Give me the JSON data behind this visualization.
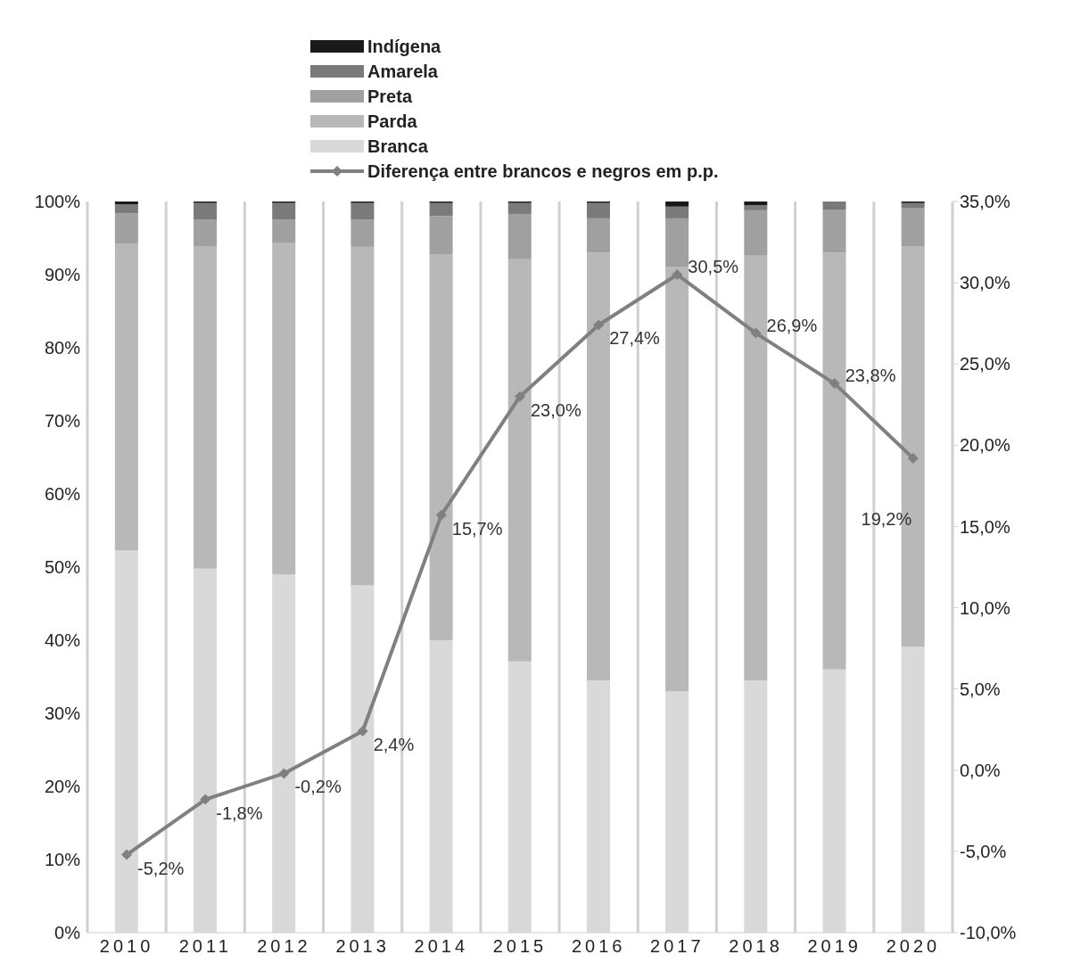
{
  "chart_data": {
    "type": "bar",
    "stacked": true,
    "categories": [
      "2010",
      "2011",
      "2012",
      "2013",
      "2014",
      "2015",
      "2016",
      "2017",
      "2018",
      "2019",
      "2020"
    ],
    "series": [
      {
        "name": "Branca",
        "color": "#d9d9d9",
        "values": [
          52.3,
          49.8,
          49.0,
          47.5,
          40.0,
          37.1,
          34.5,
          33.0,
          34.5,
          36.0,
          39.1
        ]
      },
      {
        "name": "Parda",
        "color": "#b8b8b8",
        "values": [
          41.9,
          44.1,
          45.3,
          46.3,
          52.8,
          55.0,
          58.5,
          58.1,
          58.1,
          57.0,
          54.8
        ]
      },
      {
        "name": "Preta",
        "color": "#a0a0a0",
        "values": [
          4.2,
          3.6,
          3.2,
          3.7,
          5.2,
          6.2,
          4.7,
          6.6,
          6.2,
          5.9,
          5.2
        ]
      },
      {
        "name": "Amarela",
        "color": "#7a7a7a",
        "values": [
          1.2,
          2.3,
          2.3,
          2.3,
          1.8,
          1.5,
          2.1,
          1.6,
          0.7,
          1.1,
          0.7
        ]
      },
      {
        "name": "Indígena",
        "color": "#1a1a1a",
        "values": [
          0.4,
          0.2,
          0.2,
          0.2,
          0.2,
          0.2,
          0.2,
          0.7,
          0.5,
          0.0,
          0.2
        ]
      },
      {
        "name": "Diferença entre brancos e negros em p.p.",
        "type": "line",
        "axis": "y2",
        "marker": "diamond",
        "color": "#808080",
        "values": [
          -5.2,
          -1.8,
          -0.2,
          2.4,
          15.7,
          23.0,
          27.4,
          30.5,
          26.9,
          23.8,
          19.2
        ],
        "value_labels": [
          "-5,2%",
          "-1,8%",
          "-0,2%",
          "2,4%",
          "15,7%",
          "23,0%",
          "27,4%",
          "30,5%",
          "26,9%",
          "23,8%",
          "19,2%"
        ]
      }
    ],
    "ylim": [
      0,
      100
    ],
    "yticks": [
      {
        "value": 0,
        "label": "0%"
      },
      {
        "value": 10,
        "label": "10%"
      },
      {
        "value": 20,
        "label": "20%"
      },
      {
        "value": 30,
        "label": "30%"
      },
      {
        "value": 40,
        "label": "40%"
      },
      {
        "value": 50,
        "label": "50%"
      },
      {
        "value": 60,
        "label": "60%"
      },
      {
        "value": 70,
        "label": "70%"
      },
      {
        "value": 80,
        "label": "80%"
      },
      {
        "value": 90,
        "label": "90%"
      },
      {
        "value": 100,
        "label": "100%"
      }
    ],
    "y2lim": [
      -10,
      35
    ],
    "y2ticks": [
      {
        "value": -10,
        "label": "-10,0%"
      },
      {
        "value": -5,
        "label": "-5,0%"
      },
      {
        "value": 0,
        "label": "0,0%"
      },
      {
        "value": 5,
        "label": "5,0%"
      },
      {
        "value": 10,
        "label": "10,0%"
      },
      {
        "value": 15,
        "label": "15,0%"
      },
      {
        "value": 20,
        "label": "20,0%"
      },
      {
        "value": 25,
        "label": "25,0%"
      },
      {
        "value": 30,
        "label": "30,0%"
      },
      {
        "value": 35,
        "label": "35,0%"
      }
    ],
    "grid": "x",
    "legend": "top"
  }
}
